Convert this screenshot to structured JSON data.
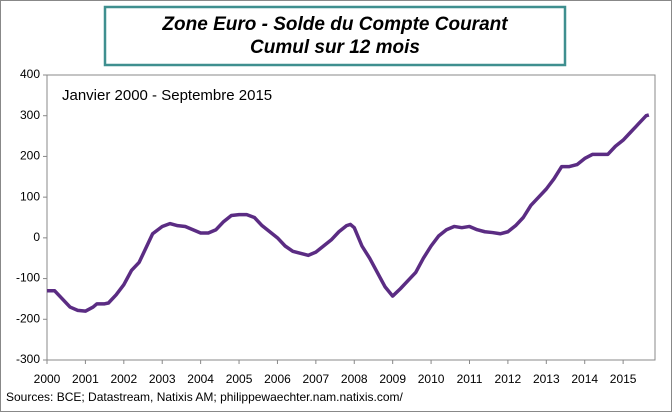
{
  "chart_data": {
    "type": "line",
    "title": "Zone Euro - Solde du Compte Courant",
    "subtitle": "Cumul sur 12 mois",
    "annotation": "Janvier 2000 - Septembre 2015",
    "source": "Sources: BCE; Datastream, Natixis AM; philippewaechter.nam.natixis.com/",
    "x": [
      2000.0,
      2000.2,
      2000.4,
      2000.6,
      2000.8,
      2001.0,
      2001.2,
      2001.3,
      2001.5,
      2001.6,
      2001.8,
      2002.0,
      2002.2,
      2002.4,
      2002.6,
      2002.75,
      2003.0,
      2003.2,
      2003.4,
      2003.6,
      2003.8,
      2004.0,
      2004.2,
      2004.4,
      2004.6,
      2004.8,
      2005.0,
      2005.2,
      2005.4,
      2005.6,
      2005.8,
      2006.0,
      2006.2,
      2006.4,
      2006.6,
      2006.8,
      2007.0,
      2007.2,
      2007.4,
      2007.6,
      2007.8,
      2007.9,
      2008.0,
      2008.2,
      2008.4,
      2008.6,
      2008.8,
      2009.0,
      2009.2,
      2009.4,
      2009.6,
      2009.8,
      2010.0,
      2010.2,
      2010.4,
      2010.6,
      2010.8,
      2011.0,
      2011.2,
      2011.4,
      2011.6,
      2011.8,
      2012.0,
      2012.2,
      2012.4,
      2012.6,
      2012.8,
      2013.0,
      2013.2,
      2013.4,
      2013.6,
      2013.8,
      2014.0,
      2014.2,
      2014.4,
      2014.6,
      2014.8,
      2015.0,
      2015.2,
      2015.4,
      2015.6,
      2015.67
    ],
    "series": [
      {
        "name": "Solde du Compte Courant",
        "color": "#5b2c83",
        "values": [
          -130,
          -130,
          -150,
          -170,
          -178,
          -180,
          -170,
          -162,
          -162,
          -160,
          -140,
          -115,
          -80,
          -60,
          -20,
          10,
          28,
          35,
          30,
          28,
          20,
          12,
          12,
          20,
          40,
          55,
          57,
          57,
          50,
          30,
          15,
          0,
          -20,
          -33,
          -38,
          -43,
          -35,
          -20,
          -5,
          15,
          30,
          33,
          25,
          -20,
          -50,
          -85,
          -120,
          -143,
          -125,
          -105,
          -85,
          -50,
          -20,
          5,
          20,
          28,
          25,
          28,
          20,
          15,
          13,
          10,
          15,
          30,
          50,
          80,
          100,
          120,
          145,
          175,
          175,
          180,
          195,
          205,
          205,
          205,
          225,
          240,
          260,
          280,
          300,
          302
        ]
      }
    ],
    "xlim": [
      2000,
      2015.83
    ],
    "xticks": [
      2000,
      2001,
      2002,
      2003,
      2004,
      2005,
      2006,
      2007,
      2008,
      2009,
      2010,
      2011,
      2012,
      2013,
      2014,
      2015
    ],
    "ylim": [
      -300,
      400
    ],
    "yticks": [
      -300,
      -200,
      -100,
      0,
      100,
      200,
      300,
      400
    ]
  }
}
